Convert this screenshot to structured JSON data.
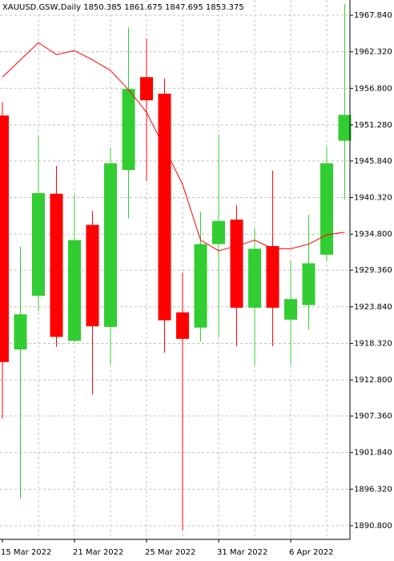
{
  "chart_data": {
    "type": "candlestick",
    "title": "XAUUSD.GSW,Daily  1850.385 1861.675 1847.695 1853.375",
    "categories": [
      "15 Mar 2022",
      null,
      null,
      null,
      "21 Mar 2022",
      null,
      null,
      null,
      "25 Mar 2022",
      null,
      null,
      null,
      "31 Mar 2022",
      null,
      null,
      null,
      "6 Apr 2022",
      null,
      null,
      null
    ],
    "open": [
      1952.7,
      1917.4,
      1925.5,
      1940.9,
      1918.7,
      1936.2,
      1920.8,
      1944.5,
      1958.5,
      1956.0,
      1923.0,
      1920.7,
      1933.3,
      1937.0,
      1923.7,
      1933.0,
      1921.9,
      1924.1,
      1931.7,
      1948.9
    ],
    "high": [
      1954.7,
      1932.9,
      1949.6,
      1945.1,
      1940.8,
      1938.3,
      1947.8,
      1966.0,
      1964.3,
      1958.3,
      1929.0,
      1938.2,
      1949.8,
      1939.2,
      1935.6,
      1944.4,
      1930.8,
      1937.7,
      1948.0,
      1969.5
    ],
    "low": [
      1907.0,
      1894.9,
      1923.2,
      1917.8,
      1918.5,
      1910.6,
      1915.1,
      1937.2,
      1942.8,
      1916.9,
      1890.1,
      1918.6,
      1919.3,
      1917.9,
      1915.0,
      1917.9,
      1915.0,
      1920.4,
      1930.8,
      1940.0
    ],
    "close": [
      1915.5,
      1922.7,
      1941.0,
      1919.3,
      1933.9,
      1920.9,
      1945.5,
      1956.7,
      1955.0,
      1921.8,
      1919.0,
      1933.3,
      1936.8,
      1923.7,
      1932.6,
      1923.7,
      1925.0,
      1930.4,
      1945.5,
      1952.8
    ],
    "ma": [
      1958.5,
      1961.1,
      1963.7,
      1961.9,
      1962.5,
      1961.1,
      1959.5,
      1956.6,
      1953.2,
      1947.8,
      1942.3,
      1933.9,
      1932.3,
      1933.0,
      1933.9,
      1932.6,
      1932.6,
      1933.3,
      1934.7,
      1935.1
    ],
    "up_color": "#32cd32",
    "down_color": "#ff0000",
    "ma_color": "#ff0000",
    "ylim": [
      1888.74,
      1970.14
    ],
    "yticks": [
      {
        "value": 1967.84,
        "label": "1967.840"
      },
      {
        "value": 1962.32,
        "label": "1962.320"
      },
      {
        "value": 1956.8,
        "label": "1956.800"
      },
      {
        "value": 1951.28,
        "label": "1951.280"
      },
      {
        "value": 1945.84,
        "label": "1945.840"
      },
      {
        "value": 1940.32,
        "label": "1940.320"
      },
      {
        "value": 1934.8,
        "label": "1934.800"
      },
      {
        "value": 1929.36,
        "label": "1929.360"
      },
      {
        "value": 1923.84,
        "label": "1923.840"
      },
      {
        "value": 1918.32,
        "label": "1918.320"
      },
      {
        "value": 1912.8,
        "label": "1912.800"
      },
      {
        "value": 1907.36,
        "label": "1907.360"
      },
      {
        "value": 1901.84,
        "label": "1901.840"
      },
      {
        "value": 1896.32,
        "label": "1896.320"
      },
      {
        "value": 1890.8,
        "label": "1890.800"
      }
    ],
    "grid": true
  }
}
